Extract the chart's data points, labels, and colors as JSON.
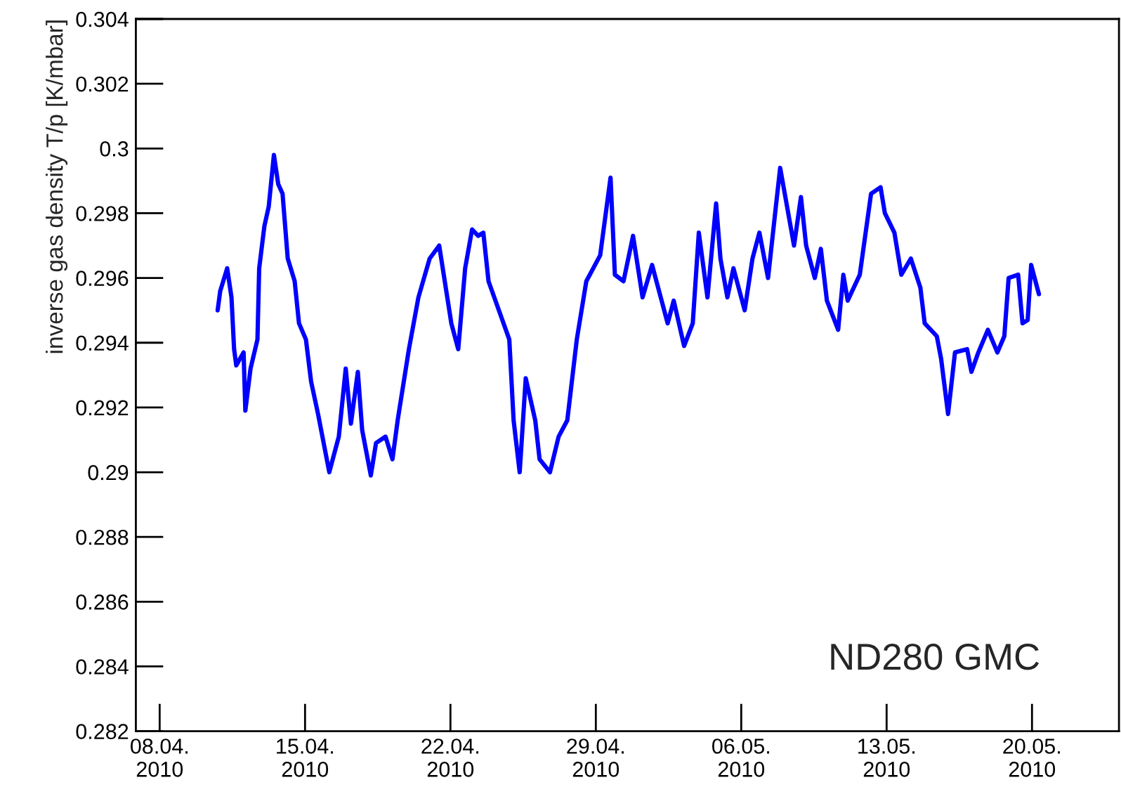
{
  "chart_data": {
    "type": "line",
    "ylabel": "inverse gas density T/p [K/mbar]",
    "annotations": [
      "ND280 GMC"
    ],
    "x": [
      "2010-04-10T19:00",
      "2010-04-10T22:00",
      "2010-04-11T06:00",
      "2010-04-11T11:00",
      "2010-04-11T14:00",
      "2010-04-11T16:30",
      "2010-04-12T01:00",
      "2010-04-12T03:00",
      "2010-04-12T09:00",
      "2010-04-12T17:00",
      "2010-04-12T19:00",
      "2010-04-13T01:00",
      "2010-04-13T06:00",
      "2010-04-13T12:00",
      "2010-04-13T17:00",
      "2010-04-13T22:00",
      "2010-04-14T04:00",
      "2010-04-14T12:00",
      "2010-04-14T17:00",
      "2010-04-15T01:00",
      "2010-04-15T07:00",
      "2010-04-15T15:00",
      "2010-04-16T04:00",
      "2010-04-16T15:00",
      "2010-04-16T23:00",
      "2010-04-17T05:00",
      "2010-04-17T13:00",
      "2010-04-17T18:00",
      "2010-04-18T04:00",
      "2010-04-18T10:00",
      "2010-04-18T21:00",
      "2010-04-19T05:00",
      "2010-04-19T11:00",
      "2010-04-20T00:00",
      "2010-04-20T11:00",
      "2010-04-21T00:00",
      "2010-04-21T11:00",
      "2010-04-22T01:00",
      "2010-04-22T09:00",
      "2010-04-22T17:00",
      "2010-04-23T01:00",
      "2010-04-23T08:00",
      "2010-04-23T14:00",
      "2010-04-23T20:00",
      "2010-04-24T12:00",
      "2010-04-24T20:00",
      "2010-04-25T01:00",
      "2010-04-25T08:00",
      "2010-04-25T15:00",
      "2010-04-26T02:00",
      "2010-04-26T07:00",
      "2010-04-26T19:00",
      "2010-04-27T05:00",
      "2010-04-27T15:00",
      "2010-04-28T02:00",
      "2010-04-28T13:00",
      "2010-04-29T05:00",
      "2010-04-29T13:00",
      "2010-04-29T17:00",
      "2010-04-29T22:00",
      "2010-04-30T08:00",
      "2010-04-30T19:00",
      "2010-05-01T06:00",
      "2010-05-01T17:00",
      "2010-05-02T03:00",
      "2010-05-02T11:00",
      "2010-05-02T18:00",
      "2010-05-03T06:00",
      "2010-05-03T16:00",
      "2010-05-03T23:00",
      "2010-05-04T09:00",
      "2010-05-04T19:00",
      "2010-05-05T00:00",
      "2010-05-05T08:00",
      "2010-05-05T15:00",
      "2010-05-06T04:00",
      "2010-05-06T13:00",
      "2010-05-06T21:00",
      "2010-05-07T07:00",
      "2010-05-07T16:00",
      "2010-05-07T21:00",
      "2010-05-08T05:00",
      "2010-05-08T13:00",
      "2010-05-08T21:00",
      "2010-05-09T03:00",
      "2010-05-09T13:00",
      "2010-05-09T20:00",
      "2010-05-10T03:00",
      "2010-05-10T16:00",
      "2010-05-10T22:00",
      "2010-05-11T03:00",
      "2010-05-11T17:00",
      "2010-05-12T06:00",
      "2010-05-12T17:00",
      "2010-05-12T22:00",
      "2010-05-13T09:00",
      "2010-05-13T17:00",
      "2010-05-14T04:00",
      "2010-05-14T15:00",
      "2010-05-14T20:00",
      "2010-05-15T10:00",
      "2010-05-15T15:00",
      "2010-05-15T23:00",
      "2010-05-16T07:00",
      "2010-05-16T21:00",
      "2010-05-17T02:00",
      "2010-05-17T10:00",
      "2010-05-17T21:00",
      "2010-05-18T08:00",
      "2010-05-18T16:00",
      "2010-05-18T21:00",
      "2010-05-19T08:00",
      "2010-05-19T13:00",
      "2010-05-19T19:00",
      "2010-05-19T23:00",
      "2010-05-20T08:00"
    ],
    "series": [
      {
        "color": "#0000ff",
        "values": [
          0.295,
          0.2956,
          0.2963,
          0.2954,
          0.2938,
          0.2933,
          0.2937,
          0.2919,
          0.2932,
          0.2941,
          0.2963,
          0.2976,
          0.2982,
          0.2998,
          0.2989,
          0.2986,
          0.2966,
          0.2959,
          0.2946,
          0.2941,
          0.2928,
          0.2918,
          0.29,
          0.2911,
          0.2932,
          0.2915,
          0.2931,
          0.2913,
          0.2899,
          0.2909,
          0.2911,
          0.2904,
          0.2916,
          0.2938,
          0.2954,
          0.2966,
          0.297,
          0.2946,
          0.2938,
          0.2963,
          0.2975,
          0.2973,
          0.2974,
          0.2959,
          0.2947,
          0.2941,
          0.2916,
          0.29,
          0.2929,
          0.2916,
          0.2904,
          0.29,
          0.2911,
          0.2916,
          0.2941,
          0.2959,
          0.2967,
          0.2983,
          0.2991,
          0.2961,
          0.2959,
          0.2973,
          0.2954,
          0.2964,
          0.2954,
          0.2946,
          0.2953,
          0.2939,
          0.2946,
          0.2974,
          0.2954,
          0.2983,
          0.2966,
          0.2954,
          0.2963,
          0.295,
          0.2966,
          0.2974,
          0.296,
          0.2982,
          0.2994,
          0.2982,
          0.297,
          0.2985,
          0.297,
          0.296,
          0.2969,
          0.2953,
          0.2944,
          0.2961,
          0.2953,
          0.2961,
          0.2986,
          0.2988,
          0.298,
          0.2974,
          0.2961,
          0.2966,
          0.2957,
          0.2946,
          0.2942,
          0.2935,
          0.2918,
          0.2937,
          0.2938,
          0.2931,
          0.2937,
          0.2944,
          0.2937,
          0.2942,
          0.296,
          0.2961,
          0.2946,
          0.2947,
          0.2964,
          0.2955
        ]
      }
    ],
    "xlim": [
      "2010-04-06T20:30",
      "2010-05-24T04:30"
    ],
    "xticks": [
      {
        "value": "2010-04-08",
        "label": "08.04.\n2010"
      },
      {
        "value": "2010-04-15",
        "label": "15.04.\n2010"
      },
      {
        "value": "2010-04-22",
        "label": "22.04.\n2010"
      },
      {
        "value": "2010-04-29",
        "label": "29.04.\n2010"
      },
      {
        "value": "2010-05-06",
        "label": "06.05.\n2010"
      },
      {
        "value": "2010-05-13",
        "label": "13.05.\n2010"
      },
      {
        "value": "2010-05-20",
        "label": "20.05.\n2010"
      }
    ],
    "ylim": [
      0.282,
      0.304
    ],
    "yticks": [
      0.282,
      0.284,
      0.286,
      0.288,
      0.29,
      0.292,
      0.294,
      0.296,
      0.298,
      0.3,
      0.302,
      0.304
    ],
    "grid": false,
    "legend": false,
    "marker": "none",
    "line_style": "solid"
  }
}
